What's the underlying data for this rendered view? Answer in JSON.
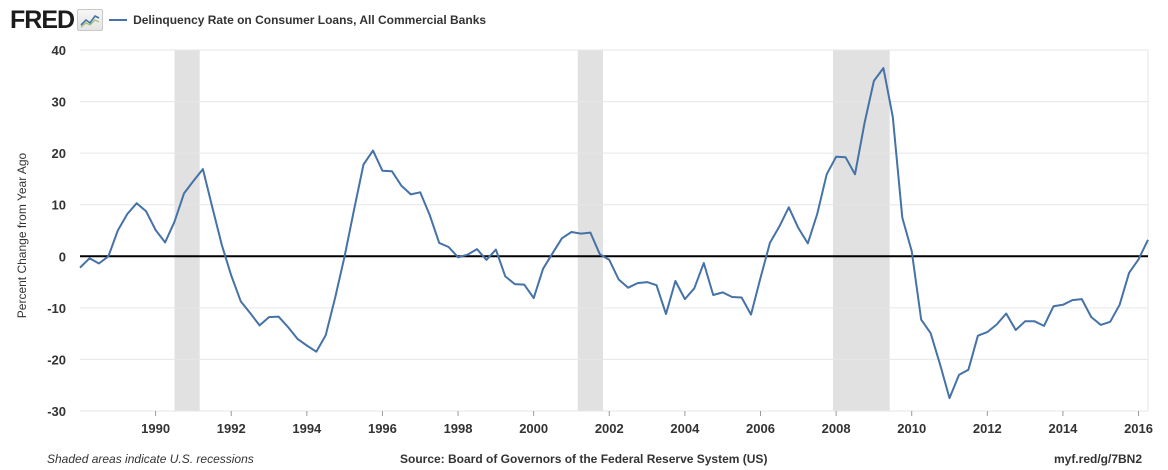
{
  "header": {
    "logo": "FRED",
    "series_title": "Delinquency Rate on Consumer Loans, All Commercial Banks"
  },
  "footer": {
    "left": "Shaded areas indicate U.S. recessions",
    "center": "Source: Board of Governors of the Federal Reserve System (US)",
    "right": "myf.red/g/7BN2"
  },
  "colors": {
    "series": "#4572a7",
    "recession": "#e1e1e1",
    "grid": "#e6e6e6",
    "zero_line": "#000000"
  },
  "chart_data": {
    "type": "line",
    "title": "",
    "ylabel": "Percent Change from Year Ago",
    "xlabel": "",
    "ylim": [
      -30,
      40
    ],
    "xlim": [
      "1988-01",
      "2016-04"
    ],
    "yticks": [
      "-30",
      "-20",
      "-10",
      "0",
      "10",
      "20",
      "30",
      "40"
    ],
    "xticks": [
      "1990",
      "1992",
      "1994",
      "1996",
      "1998",
      "2000",
      "2002",
      "2004",
      "2006",
      "2008",
      "2010",
      "2012",
      "2014",
      "2016"
    ],
    "grid": true,
    "zero_line": true,
    "recessions": [
      {
        "start": "1990-07",
        "end": "1991-03"
      },
      {
        "start": "2001-03",
        "end": "2001-11"
      },
      {
        "start": "2007-12",
        "end": "2009-06"
      }
    ],
    "series": [
      {
        "name": "Delinquency Rate on Consumer Loans, All Commercial Banks",
        "x": [
          "1988-01",
          "1988-04",
          "1988-07",
          "1988-10",
          "1989-01",
          "1989-04",
          "1989-07",
          "1989-10",
          "1990-01",
          "1990-04",
          "1990-07",
          "1990-10",
          "1991-01",
          "1991-04",
          "1991-07",
          "1991-10",
          "1992-01",
          "1992-04",
          "1992-07",
          "1992-10",
          "1993-01",
          "1993-04",
          "1993-07",
          "1993-10",
          "1994-01",
          "1994-04",
          "1994-07",
          "1994-10",
          "1995-01",
          "1995-04",
          "1995-07",
          "1995-10",
          "1996-01",
          "1996-04",
          "1996-07",
          "1996-10",
          "1997-01",
          "1997-04",
          "1997-07",
          "1997-10",
          "1998-01",
          "1998-04",
          "1998-07",
          "1998-10",
          "1999-01",
          "1999-04",
          "1999-07",
          "1999-10",
          "2000-01",
          "2000-04",
          "2000-07",
          "2000-10",
          "2001-01",
          "2001-04",
          "2001-07",
          "2001-10",
          "2002-01",
          "2002-04",
          "2002-07",
          "2002-10",
          "2003-01",
          "2003-04",
          "2003-07",
          "2003-10",
          "2004-01",
          "2004-04",
          "2004-07",
          "2004-10",
          "2005-01",
          "2005-04",
          "2005-07",
          "2005-10",
          "2006-01",
          "2006-04",
          "2006-07",
          "2006-10",
          "2007-01",
          "2007-04",
          "2007-07",
          "2007-10",
          "2008-01",
          "2008-04",
          "2008-07",
          "2008-10",
          "2009-01",
          "2009-04",
          "2009-07",
          "2009-10",
          "2010-01",
          "2010-04",
          "2010-07",
          "2010-10",
          "2011-01",
          "2011-04",
          "2011-07",
          "2011-10",
          "2012-01",
          "2012-04",
          "2012-07",
          "2012-10",
          "2013-01",
          "2013-04",
          "2013-07",
          "2013-10",
          "2014-01",
          "2014-04",
          "2014-07",
          "2014-10",
          "2015-01",
          "2015-04",
          "2015-07",
          "2015-10",
          "2016-01",
          "2016-04"
        ],
        "values": [
          -2.2,
          -0.4,
          -1.4,
          0.0,
          5.0,
          8.2,
          10.3,
          8.7,
          5.1,
          2.7,
          6.7,
          12.2,
          14.6,
          16.9,
          9.5,
          2.2,
          -3.7,
          -8.7,
          -11.0,
          -13.4,
          -11.8,
          -11.7,
          -13.7,
          -16.0,
          -17.3,
          -18.5,
          -15.3,
          -8.0,
          0.0,
          9.1,
          17.8,
          20.5,
          16.6,
          16.5,
          13.7,
          12.0,
          12.4,
          8.0,
          2.6,
          1.8,
          -0.2,
          0.3,
          1.4,
          -0.7,
          1.3,
          -3.9,
          -5.4,
          -5.5,
          -8.1,
          -2.4,
          0.6,
          3.5,
          4.7,
          4.4,
          4.6,
          0.4,
          -0.7,
          -4.5,
          -6.1,
          -5.2,
          -5.0,
          -5.6,
          -11.2,
          -4.8,
          -8.3,
          -6.2,
          -1.3,
          -7.5,
          -7.0,
          -7.9,
          -8.0,
          -11.3,
          -4.2,
          2.6,
          5.8,
          9.5,
          5.5,
          2.5,
          8.2,
          15.9,
          19.3,
          19.2,
          15.9,
          25.8,
          34.0,
          36.5,
          27.0,
          7.5,
          1.0,
          -12.3,
          -14.9,
          -21.0,
          -27.5,
          -23.0,
          -22.0,
          -15.4,
          -14.7,
          -13.2,
          -11.1,
          -14.3,
          -12.6,
          -12.6,
          -13.5,
          -9.7,
          -9.4,
          -8.5,
          -8.3,
          -11.8,
          -13.3,
          -12.7,
          -9.4,
          -3.2,
          -0.6,
          3.2
        ]
      }
    ]
  }
}
